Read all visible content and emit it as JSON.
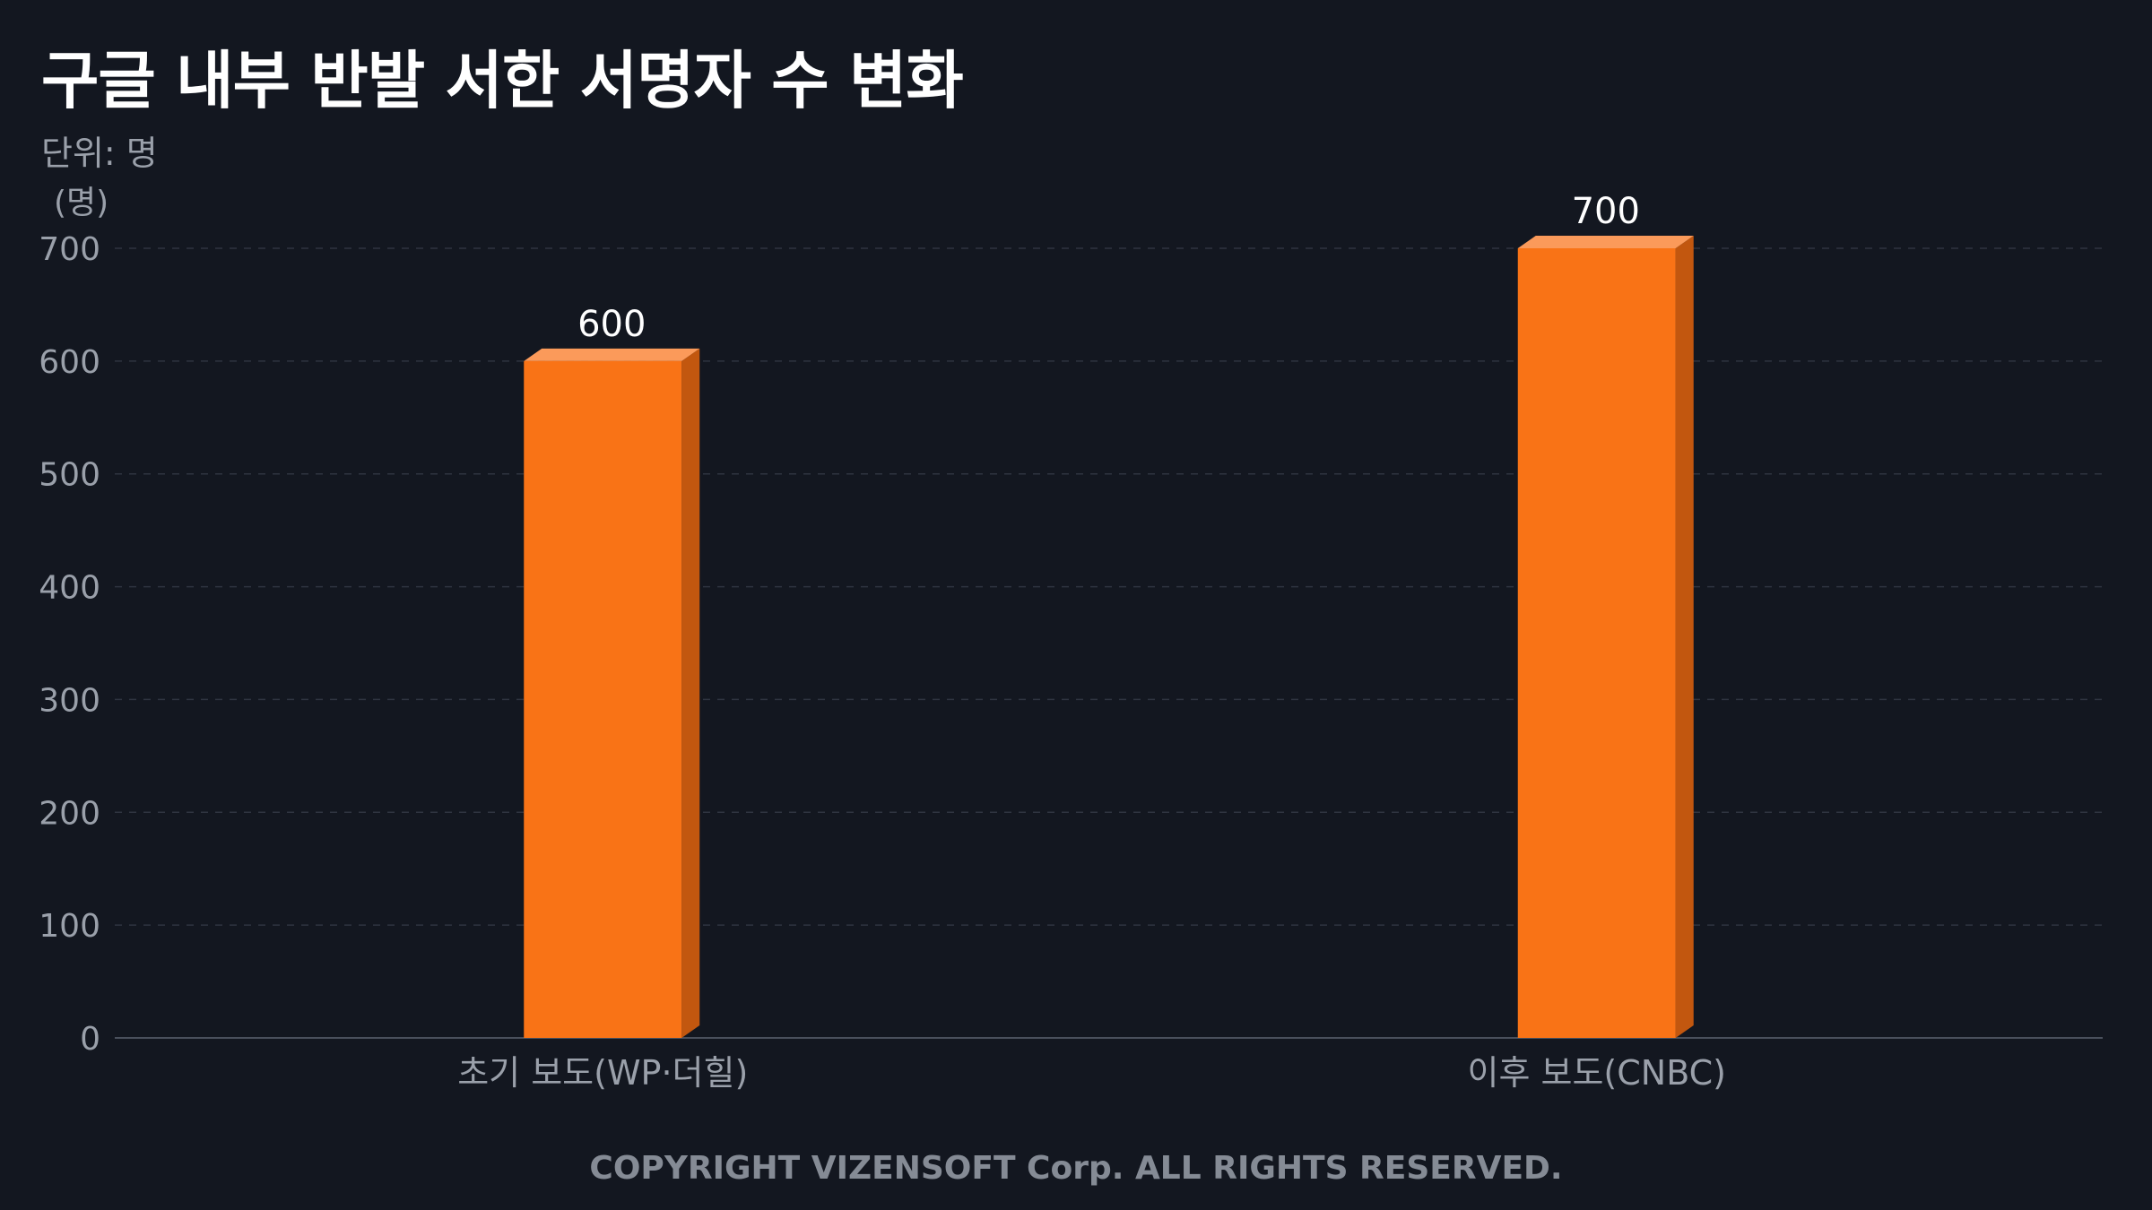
{
  "header": {
    "title": "구글 내부 반발 서한 서명자 수 변화",
    "subtitle": "단위: 명"
  },
  "footer": {
    "copyright": "COPYRIGHT VIZENSOFT Corp. ALL RIGHTS RESERVED."
  },
  "colors": {
    "background": "#131720",
    "bar_front": "#f97316",
    "bar_top": "#fb9a5a",
    "bar_side": "#c2570f",
    "grid": "#2f3440",
    "axis_text": "#9aa0aa",
    "value_text": "#ffffff"
  },
  "chart_data": {
    "type": "bar",
    "title": "구글 내부 반발 서한 서명자 수 변화",
    "subtitle": "단위: 명",
    "ylabel": "(명)",
    "xlabel": "",
    "categories": [
      "초기 보도(WP·더힐)",
      "이후 보도(CNBC)"
    ],
    "values": [
      600,
      700
    ],
    "data_labels": [
      "600",
      "700"
    ],
    "ylim": [
      0,
      700
    ],
    "yticks": [
      0,
      100,
      200,
      300,
      400,
      500,
      600,
      700
    ],
    "grid": true,
    "legend": "none"
  }
}
